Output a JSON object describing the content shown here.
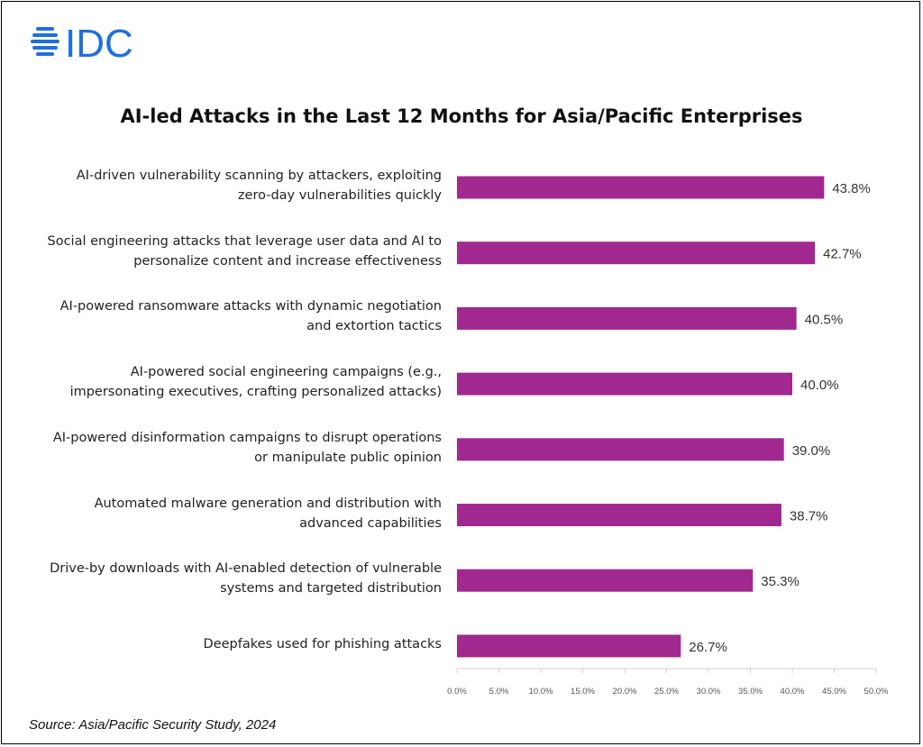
{
  "logo": {
    "text": "IDC",
    "icon": "idc-globe-icon",
    "color": "#1f6fe0"
  },
  "chart_data": {
    "type": "bar",
    "orientation": "horizontal",
    "title": "AI-led Attacks in the Last 12 Months for Asia/Pacific Enterprises",
    "categories": [
      [
        "AI-driven vulnerability scanning by attackers, exploiting",
        "zero-day vulnerabilities quickly"
      ],
      [
        "Social engineering attacks that leverage user data and AI to",
        "personalize content and increase effectiveness"
      ],
      [
        "AI-powered ransomware attacks with dynamic negotiation",
        "and extortion tactics"
      ],
      [
        "AI-powered social engineering campaigns (e.g.,",
        "impersonating executives, crafting personalized attacks)"
      ],
      [
        "AI-powered disinformation campaigns to disrupt operations",
        "or manipulate public opinion"
      ],
      [
        "Automated malware generation and distribution with",
        "advanced capabilities"
      ],
      [
        "Drive-by downloads with AI-enabled detection of vulnerable",
        "systems and targeted distribution"
      ],
      [
        "Deepfakes used for phishing attacks"
      ]
    ],
    "values": [
      43.8,
      42.7,
      40.5,
      40.0,
      39.0,
      38.7,
      35.3,
      26.7
    ],
    "value_labels": [
      "43.8%",
      "42.7%",
      "40.5%",
      "40.0%",
      "39.0%",
      "38.7%",
      "35.3%",
      "26.7%"
    ],
    "xlim": [
      0,
      50
    ],
    "xticks": [
      0,
      5,
      10,
      15,
      20,
      25,
      30,
      35,
      40,
      45,
      50
    ],
    "xtick_labels": [
      "0.0%",
      "5.0%",
      "10.0%",
      "15.0%",
      "20.0%",
      "25.0%",
      "30.0%",
      "35.0%",
      "40.0%",
      "45.0%",
      "50.0%"
    ],
    "bar_color": "#a1288e",
    "grid": false,
    "legend": "none"
  },
  "source": "Source: Asia/Pacific Security Study, 2024"
}
